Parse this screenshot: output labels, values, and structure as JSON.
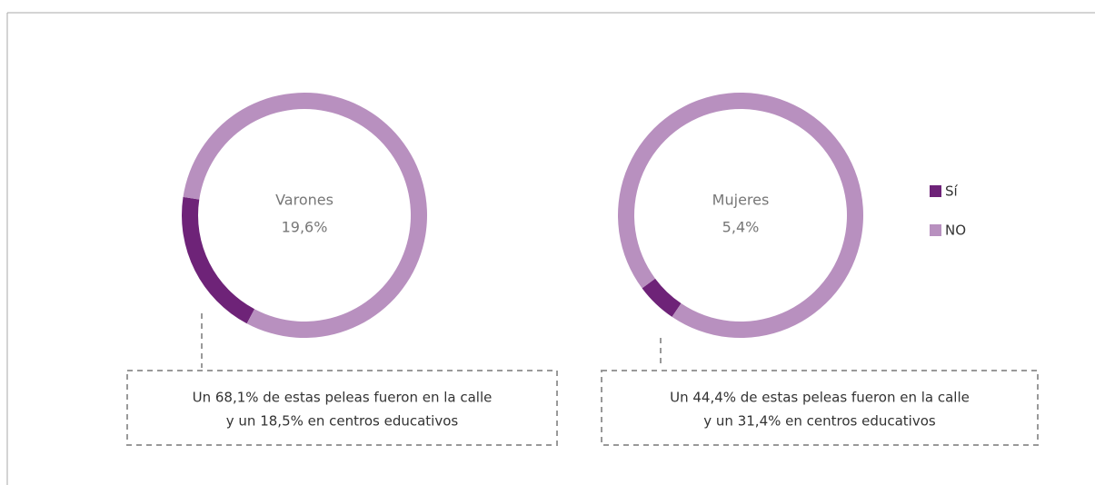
{
  "chart_data": [
    {
      "type": "pie",
      "label": "Varones",
      "categories": [
        "Sí",
        "NO"
      ],
      "values": [
        19.6,
        80.4
      ],
      "value_labels": [
        "19,6%",
        null
      ],
      "colors": [
        "#6e2378",
        "#b890bf"
      ],
      "legend": "right",
      "annotation": [
        "Un 68,1% de estas peleas fueron en la calle",
        "y un 18,5% en centros educativos"
      ]
    },
    {
      "type": "pie",
      "label": "Mujeres",
      "categories": [
        "Sí",
        "NO"
      ],
      "values": [
        5.4,
        94.6
      ],
      "value_labels": [
        "5,4%",
        null
      ],
      "colors": [
        "#6e2378",
        "#b890bf"
      ],
      "legend": "right",
      "annotation": [
        "Un 44,4% de estas peleas fueron en la calle",
        "y un 31,4% en centros educativos"
      ]
    }
  ]
}
